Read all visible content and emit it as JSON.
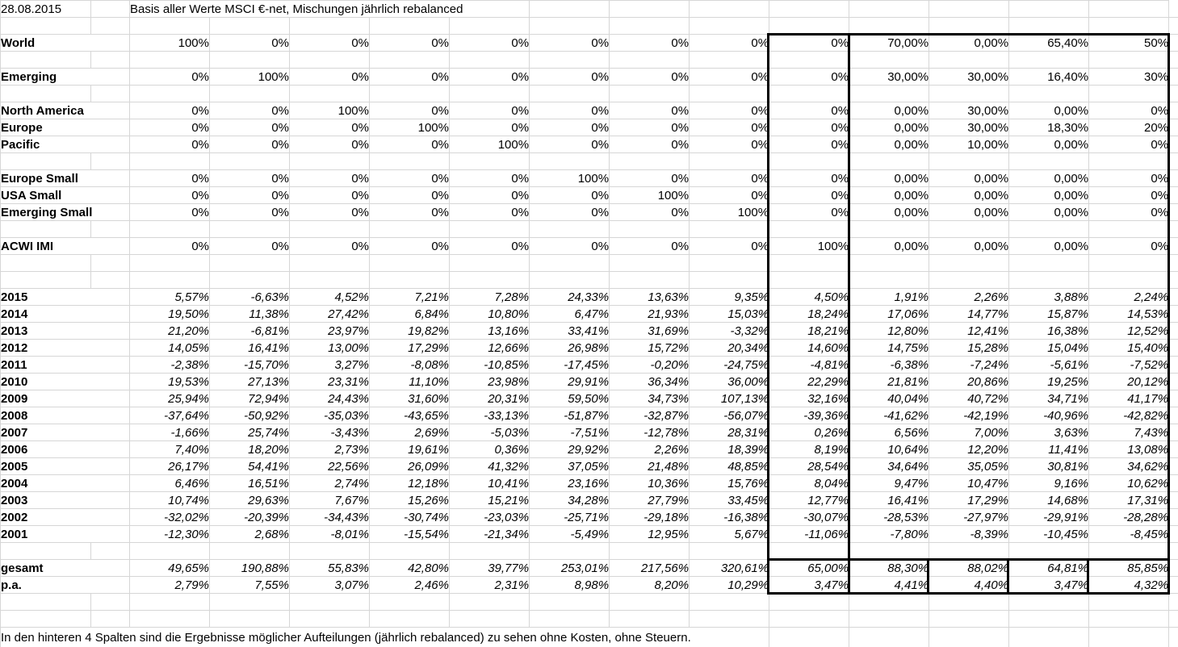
{
  "header": {
    "date": "28.08.2015",
    "title": "Basis aller Werte MSCI €-net, Mischungen jährlich rebalanced"
  },
  "table": {
    "weight_rows": [
      {
        "label": "World",
        "values": [
          "100%",
          "0%",
          "0%",
          "0%",
          "0%",
          "0%",
          "0%",
          "0%",
          "0%",
          "70,00%",
          "0,00%",
          "65,40%",
          "50%"
        ]
      },
      {
        "label": "Emerging",
        "values": [
          "0%",
          "100%",
          "0%",
          "0%",
          "0%",
          "0%",
          "0%",
          "0%",
          "0%",
          "30,00%",
          "30,00%",
          "16,40%",
          "30%"
        ]
      },
      {
        "label": "North America",
        "values": [
          "0%",
          "0%",
          "100%",
          "0%",
          "0%",
          "0%",
          "0%",
          "0%",
          "0%",
          "0,00%",
          "30,00%",
          "0,00%",
          "0%"
        ]
      },
      {
        "label": "Europe",
        "values": [
          "0%",
          "0%",
          "0%",
          "100%",
          "0%",
          "0%",
          "0%",
          "0%",
          "0%",
          "0,00%",
          "30,00%",
          "18,30%",
          "20%"
        ]
      },
      {
        "label": "Pacific",
        "values": [
          "0%",
          "0%",
          "0%",
          "0%",
          "100%",
          "0%",
          "0%",
          "0%",
          "0%",
          "0,00%",
          "10,00%",
          "0,00%",
          "0%"
        ]
      },
      {
        "label": "Europe Small",
        "values": [
          "0%",
          "0%",
          "0%",
          "0%",
          "0%",
          "100%",
          "0%",
          "0%",
          "0%",
          "0,00%",
          "0,00%",
          "0,00%",
          "0%"
        ]
      },
      {
        "label": "USA Small",
        "values": [
          "0%",
          "0%",
          "0%",
          "0%",
          "0%",
          "0%",
          "100%",
          "0%",
          "0%",
          "0,00%",
          "0,00%",
          "0,00%",
          "0%"
        ]
      },
      {
        "label": "Emerging Small",
        "values": [
          "0%",
          "0%",
          "0%",
          "0%",
          "0%",
          "0%",
          "0%",
          "100%",
          "0%",
          "0,00%",
          "0,00%",
          "0,00%",
          "0%"
        ]
      },
      {
        "label": "ACWI IMI",
        "values": [
          "0%",
          "0%",
          "0%",
          "0%",
          "0%",
          "0%",
          "0%",
          "0%",
          "100%",
          "0,00%",
          "0,00%",
          "0,00%",
          "0%"
        ]
      }
    ],
    "year_rows": [
      {
        "label": "2015",
        "values": [
          "5,57%",
          "-6,63%",
          "4,52%",
          "7,21%",
          "7,28%",
          "24,33%",
          "13,63%",
          "9,35%",
          "4,50%",
          "1,91%",
          "2,26%",
          "3,88%",
          "2,24%"
        ]
      },
      {
        "label": "2014",
        "values": [
          "19,50%",
          "11,38%",
          "27,42%",
          "6,84%",
          "10,80%",
          "6,47%",
          "21,93%",
          "15,03%",
          "18,24%",
          "17,06%",
          "14,77%",
          "15,87%",
          "14,53%"
        ]
      },
      {
        "label": "2013",
        "values": [
          "21,20%",
          "-6,81%",
          "23,97%",
          "19,82%",
          "13,16%",
          "33,41%",
          "31,69%",
          "-3,32%",
          "18,21%",
          "12,80%",
          "12,41%",
          "16,38%",
          "12,52%"
        ]
      },
      {
        "label": "2012",
        "values": [
          "14,05%",
          "16,41%",
          "13,00%",
          "17,29%",
          "12,66%",
          "26,98%",
          "15,72%",
          "20,34%",
          "14,60%",
          "14,75%",
          "15,28%",
          "15,04%",
          "15,40%"
        ]
      },
      {
        "label": "2011",
        "values": [
          "-2,38%",
          "-15,70%",
          "3,27%",
          "-8,08%",
          "-10,85%",
          "-17,45%",
          "-0,20%",
          "-24,75%",
          "-4,81%",
          "-6,38%",
          "-7,24%",
          "-5,61%",
          "-7,52%"
        ]
      },
      {
        "label": "2010",
        "values": [
          "19,53%",
          "27,13%",
          "23,31%",
          "11,10%",
          "23,98%",
          "29,91%",
          "36,34%",
          "36,00%",
          "22,29%",
          "21,81%",
          "20,86%",
          "19,25%",
          "20,12%"
        ]
      },
      {
        "label": "2009",
        "values": [
          "25,94%",
          "72,94%",
          "24,43%",
          "31,60%",
          "20,31%",
          "59,50%",
          "34,73%",
          "107,13%",
          "32,16%",
          "40,04%",
          "40,72%",
          "34,71%",
          "41,17%"
        ]
      },
      {
        "label": "2008",
        "values": [
          "-37,64%",
          "-50,92%",
          "-35,03%",
          "-43,65%",
          "-33,13%",
          "-51,87%",
          "-32,87%",
          "-56,07%",
          "-39,36%",
          "-41,62%",
          "-42,19%",
          "-40,96%",
          "-42,82%"
        ]
      },
      {
        "label": "2007",
        "values": [
          "-1,66%",
          "25,74%",
          "-3,43%",
          "2,69%",
          "-5,03%",
          "-7,51%",
          "-12,78%",
          "28,31%",
          "0,26%",
          "6,56%",
          "7,00%",
          "3,63%",
          "7,43%"
        ]
      },
      {
        "label": "2006",
        "values": [
          "7,40%",
          "18,20%",
          "2,73%",
          "19,61%",
          "0,36%",
          "29,92%",
          "2,26%",
          "18,39%",
          "8,19%",
          "10,64%",
          "12,20%",
          "11,41%",
          "13,08%"
        ]
      },
      {
        "label": "2005",
        "values": [
          "26,17%",
          "54,41%",
          "22,56%",
          "26,09%",
          "41,32%",
          "37,05%",
          "21,48%",
          "48,85%",
          "28,54%",
          "34,64%",
          "35,05%",
          "30,81%",
          "34,62%"
        ]
      },
      {
        "label": "2004",
        "values": [
          "6,46%",
          "16,51%",
          "2,74%",
          "12,18%",
          "10,41%",
          "23,16%",
          "10,36%",
          "15,76%",
          "8,04%",
          "9,47%",
          "10,47%",
          "9,16%",
          "10,62%"
        ]
      },
      {
        "label": "2003",
        "values": [
          "10,74%",
          "29,63%",
          "7,67%",
          "15,26%",
          "15,21%",
          "34,28%",
          "27,79%",
          "33,45%",
          "12,77%",
          "16,41%",
          "17,29%",
          "14,68%",
          "17,31%"
        ]
      },
      {
        "label": "2002",
        "values": [
          "-32,02%",
          "-20,39%",
          "-34,43%",
          "-30,74%",
          "-23,03%",
          "-25,71%",
          "-29,18%",
          "-16,38%",
          "-30,07%",
          "-28,53%",
          "-27,97%",
          "-29,91%",
          "-28,28%"
        ]
      },
      {
        "label": "2001",
        "values": [
          "-12,30%",
          "2,68%",
          "-8,01%",
          "-15,54%",
          "-21,34%",
          "-5,49%",
          "12,95%",
          "5,67%",
          "-11,06%",
          "-7,80%",
          "-8,39%",
          "-10,45%",
          "-8,45%"
        ]
      }
    ],
    "summary_rows": [
      {
        "label": "gesamt",
        "values": [
          "49,65%",
          "190,88%",
          "55,83%",
          "42,80%",
          "39,77%",
          "253,01%",
          "217,56%",
          "320,61%",
          "65,00%",
          "88,30%",
          "88,02%",
          "64,81%",
          "85,85%"
        ]
      },
      {
        "label": "p.a.",
        "values": [
          "2,79%",
          "7,55%",
          "3,07%",
          "2,46%",
          "2,31%",
          "8,98%",
          "8,20%",
          "10,29%",
          "3,47%",
          "4,41%",
          "4,40%",
          "3,47%",
          "4,32%"
        ]
      }
    ]
  },
  "footer": {
    "note": "In den hinteren 4 Spalten sind die Ergebnisse möglicher Aufteilungen (jährlich rebalanced) zu sehen ohne Kosten, ohne Steuern."
  },
  "colors": {
    "gridline": "#d6d6d6",
    "highlight_border": "#000000",
    "background": "#ffffff",
    "text": "#000000"
  }
}
